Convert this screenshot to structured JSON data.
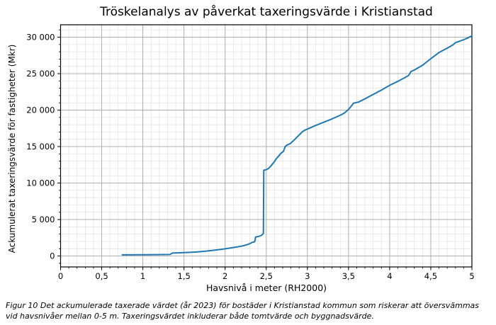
{
  "chart": {
    "title": "Tröskelanalys av påverkat taxeringsvärde i Kristianstad",
    "xlabel": "Havsnivå i meter (RH2000)",
    "ylabel": "Ackumulerat taxeringsvärde för fastigheter (Mkr)"
  },
  "caption": {
    "lines": [
      "Figur 10 Det ackumulerade taxerade värdet (år 2023) för bostäder i Kristianstad kommun som riskerar att översvämmas",
      "vid havsnivåer mellan 0-5 m. Taxeringsvärdet inkluderar både tomtvärde och byggnadsvärde."
    ]
  },
  "chart_data": {
    "type": "line",
    "title": "Tröskelanalys av påverkat taxeringsvärde i Kristianstad",
    "xlabel": "Havsnivå i meter (RH2000)",
    "ylabel": "Ackumulerat taxeringsvärde för fastigheter (Mkr)",
    "xlim": [
      0,
      5
    ],
    "ylim": [
      -1500,
      31700
    ],
    "x_ticks": [
      0,
      0.5,
      1,
      1.5,
      2,
      2.5,
      3,
      3.5,
      4,
      4.5,
      5
    ],
    "x_tick_labels": [
      "0",
      "0,5",
      "1",
      "1,5",
      "2",
      "2,5",
      "3",
      "3,5",
      "4",
      "4,5",
      "5"
    ],
    "y_ticks": [
      0,
      5000,
      10000,
      15000,
      20000,
      25000,
      30000
    ],
    "y_tick_labels": [
      "0",
      "5 000",
      "10 000",
      "15 000",
      "20 000",
      "25 000",
      "30 000"
    ],
    "x_minor_step": 0.1,
    "y_minor_step": 1000,
    "grid": "major+minor",
    "legend": "none",
    "colors": {
      "line": "#1f77b4",
      "grid_major": "#b0b0b0",
      "grid_minor": "#e0e0e0",
      "spine": "#000000"
    },
    "series": [
      {
        "name": "Ackumulerat taxeringsvärde",
        "points": [
          [
            0.75,
            160
          ],
          [
            0.85,
            165
          ],
          [
            0.95,
            170
          ],
          [
            1.05,
            178
          ],
          [
            1.15,
            186
          ],
          [
            1.25,
            196
          ],
          [
            1.33,
            210
          ],
          [
            1.36,
            400
          ],
          [
            1.45,
            440
          ],
          [
            1.55,
            495
          ],
          [
            1.65,
            555
          ],
          [
            1.75,
            645
          ],
          [
            1.85,
            765
          ],
          [
            1.95,
            905
          ],
          [
            2.05,
            1070
          ],
          [
            2.15,
            1250
          ],
          [
            2.22,
            1400
          ],
          [
            2.28,
            1600
          ],
          [
            2.31,
            1750
          ],
          [
            2.33,
            1870
          ],
          [
            2.36,
            1960
          ],
          [
            2.37,
            2600
          ],
          [
            2.41,
            2690
          ],
          [
            2.44,
            2820
          ],
          [
            2.455,
            2960
          ],
          [
            2.465,
            3080
          ],
          [
            2.47,
            11760
          ],
          [
            2.5,
            11830
          ],
          [
            2.53,
            12020
          ],
          [
            2.56,
            12400
          ],
          [
            2.59,
            12800
          ],
          [
            2.62,
            13300
          ],
          [
            2.65,
            13700
          ],
          [
            2.68,
            14100
          ],
          [
            2.71,
            14350
          ],
          [
            2.73,
            15000
          ],
          [
            2.75,
            15200
          ],
          [
            2.79,
            15400
          ],
          [
            2.83,
            15800
          ],
          [
            2.87,
            16250
          ],
          [
            2.91,
            16700
          ],
          [
            2.94,
            17050
          ],
          [
            2.97,
            17250
          ],
          [
            3.0,
            17400
          ],
          [
            3.1,
            17900
          ],
          [
            3.2,
            18350
          ],
          [
            3.3,
            18800
          ],
          [
            3.4,
            19300
          ],
          [
            3.45,
            19600
          ],
          [
            3.5,
            20100
          ],
          [
            3.53,
            20500
          ],
          [
            3.56,
            20950
          ],
          [
            3.62,
            21100
          ],
          [
            3.7,
            21550
          ],
          [
            3.8,
            22150
          ],
          [
            3.9,
            22750
          ],
          [
            4.0,
            23400
          ],
          [
            4.1,
            23950
          ],
          [
            4.2,
            24550
          ],
          [
            4.23,
            24750
          ],
          [
            4.26,
            25300
          ],
          [
            4.3,
            25500
          ],
          [
            4.4,
            26150
          ],
          [
            4.5,
            27050
          ],
          [
            4.6,
            27900
          ],
          [
            4.7,
            28500
          ],
          [
            4.77,
            28950
          ],
          [
            4.8,
            29250
          ],
          [
            4.85,
            29450
          ],
          [
            4.9,
            29650
          ],
          [
            4.95,
            29900
          ],
          [
            5.0,
            30200
          ]
        ]
      }
    ]
  }
}
